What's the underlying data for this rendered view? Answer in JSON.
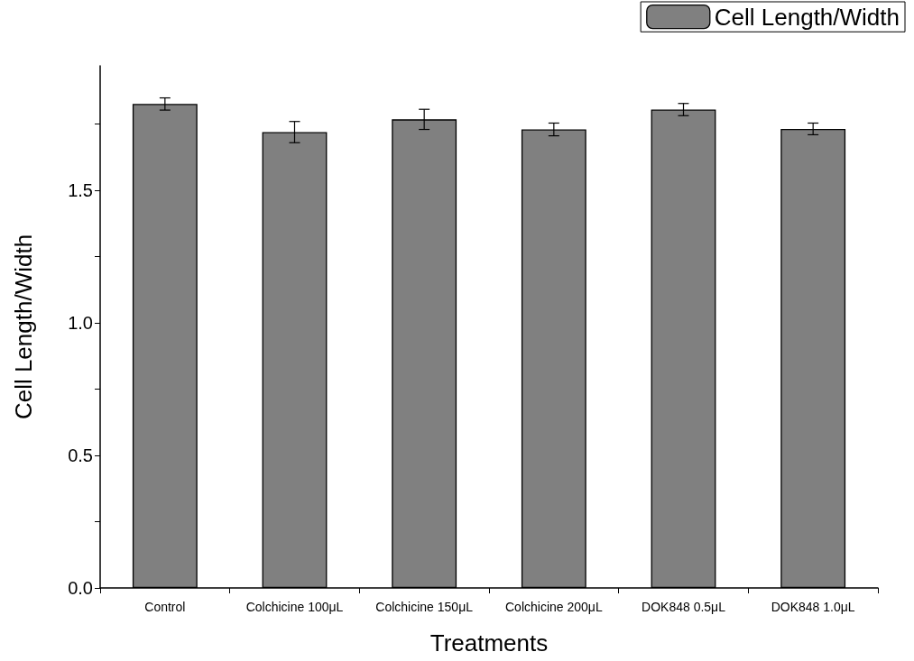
{
  "chart_data": {
    "type": "bar",
    "xlabel": "Treatments",
    "ylabel": "Cell Length/Width",
    "categories": [
      "Control",
      "Colchicine 100μL",
      "Colchicine 150μL",
      "Colchicine 200μL",
      "DOK848 0.5μL",
      "DOK848 1.0μL"
    ],
    "series": [
      {
        "name": "Cell Length/Width",
        "color": "#808080",
        "values": [
          1.826,
          1.72,
          1.768,
          1.73,
          1.805,
          1.732
        ],
        "errors": [
          0.023,
          0.04,
          0.038,
          0.024,
          0.023,
          0.022
        ]
      }
    ],
    "ylim": [
      0,
      1.97
    ],
    "yticks": [
      {
        "value": 0,
        "label": "0.0"
      },
      {
        "value": 0.25,
        "label": null
      },
      {
        "value": 0.5,
        "label": "0.5"
      },
      {
        "value": 0.75,
        "label": null
      },
      {
        "value": 1,
        "label": "1.0"
      },
      {
        "value": 1.25,
        "label": null
      },
      {
        "value": 1.5,
        "label": "1.5"
      },
      {
        "value": 1.75,
        "label": null
      }
    ],
    "grid": false,
    "legend": "top right"
  }
}
